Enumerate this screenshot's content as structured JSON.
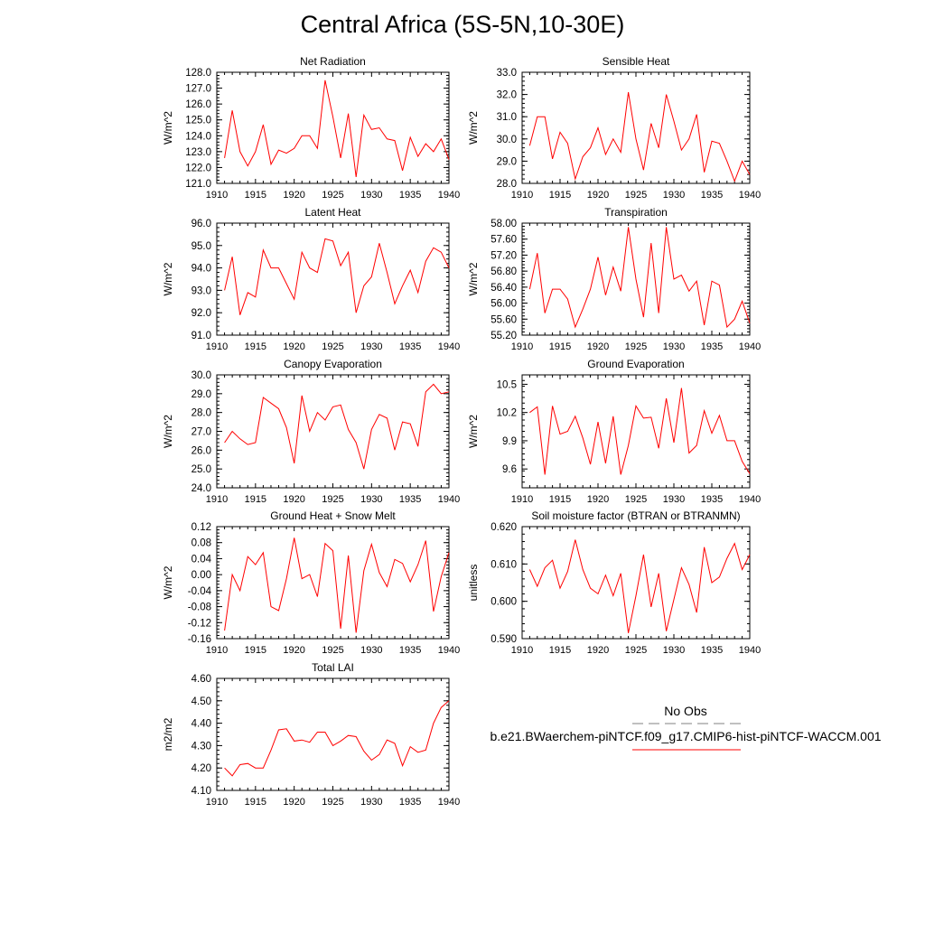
{
  "title": "Central Africa (5S-5N,10-30E)",
  "colors": {
    "series": "#ff0000",
    "axis": "#000000",
    "obs": "#808080"
  },
  "legend": {
    "obs_label": "No Obs",
    "model_label": "b.e21.BWaerchem-piNTCF.f09_g17.CMIP6-hist-piNTCF-WACCM.001"
  },
  "chart_data": [
    {
      "type": "line",
      "title": "Net Radiation",
      "ylabel": "W/m^2",
      "xlim": [
        1910,
        1940
      ],
      "ylim": [
        121.0,
        128.0
      ],
      "xticks": [
        "1910",
        "1915",
        "1920",
        "1925",
        "1930",
        "1935",
        "1940"
      ],
      "yticks": [
        "121.0",
        "122.0",
        "123.0",
        "124.0",
        "125.0",
        "126.0",
        "127.0",
        "128.0"
      ],
      "x": [
        1911,
        1912,
        1913,
        1914,
        1915,
        1916,
        1917,
        1918,
        1919,
        1920,
        1921,
        1922,
        1923,
        1924,
        1925,
        1926,
        1927,
        1928,
        1929,
        1930,
        1931,
        1932,
        1933,
        1934,
        1935,
        1936,
        1937,
        1938,
        1939,
        1940
      ],
      "values": [
        122.6,
        125.6,
        123.0,
        122.1,
        123.0,
        124.7,
        122.2,
        123.1,
        122.9,
        123.2,
        124.0,
        124.0,
        123.2,
        127.5,
        125.2,
        122.6,
        125.4,
        121.4,
        125.3,
        124.4,
        124.5,
        123.8,
        123.7,
        121.8,
        123.9,
        122.7,
        123.5,
        123.0,
        123.8,
        122.5
      ]
    },
    {
      "type": "line",
      "title": "Sensible Heat",
      "ylabel": "W/m^2",
      "xlim": [
        1910,
        1940
      ],
      "ylim": [
        28.0,
        33.0
      ],
      "xticks": [
        "1910",
        "1915",
        "1920",
        "1925",
        "1930",
        "1935",
        "1940"
      ],
      "yticks": [
        "28.0",
        "29.0",
        "30.0",
        "31.0",
        "32.0",
        "33.0"
      ],
      "x": [
        1911,
        1912,
        1913,
        1914,
        1915,
        1916,
        1917,
        1918,
        1919,
        1920,
        1921,
        1922,
        1923,
        1924,
        1925,
        1926,
        1927,
        1928,
        1929,
        1930,
        1931,
        1932,
        1933,
        1934,
        1935,
        1936,
        1937,
        1938,
        1939,
        1940
      ],
      "values": [
        29.7,
        31.0,
        31.0,
        29.1,
        30.3,
        29.8,
        28.2,
        29.2,
        29.6,
        30.5,
        29.3,
        30.0,
        29.4,
        32.1,
        30.0,
        28.6,
        30.7,
        29.6,
        32.0,
        30.8,
        29.5,
        30.0,
        31.1,
        28.5,
        29.9,
        29.8,
        29.0,
        28.1,
        29.0,
        28.4
      ]
    },
    {
      "type": "line",
      "title": "Latent Heat",
      "ylabel": "W/m^2",
      "xlim": [
        1910,
        1940
      ],
      "ylim": [
        91.0,
        96.0
      ],
      "xticks": [
        "1910",
        "1915",
        "1920",
        "1925",
        "1930",
        "1935",
        "1940"
      ],
      "yticks": [
        "91.0",
        "92.0",
        "93.0",
        "94.0",
        "95.0",
        "96.0"
      ],
      "x": [
        1911,
        1912,
        1913,
        1914,
        1915,
        1916,
        1917,
        1918,
        1919,
        1920,
        1921,
        1922,
        1923,
        1924,
        1925,
        1926,
        1927,
        1928,
        1929,
        1930,
        1931,
        1932,
        1933,
        1934,
        1935,
        1936,
        1937,
        1938,
        1939,
        1940
      ],
      "values": [
        93.0,
        94.5,
        91.9,
        92.9,
        92.7,
        94.8,
        94.0,
        94.0,
        93.3,
        92.6,
        94.7,
        94.0,
        93.8,
        95.3,
        95.2,
        94.1,
        94.7,
        92.0,
        93.2,
        93.6,
        95.1,
        93.8,
        92.4,
        93.2,
        93.9,
        92.9,
        94.3,
        94.9,
        94.7,
        94.0
      ]
    },
    {
      "type": "line",
      "title": "Transpiration",
      "ylabel": "W/m^2",
      "xlim": [
        1910,
        1940
      ],
      "ylim": [
        55.2,
        58.0
      ],
      "xticks": [
        "1910",
        "1915",
        "1920",
        "1925",
        "1930",
        "1935",
        "1940"
      ],
      "yticks": [
        "55.20",
        "55.60",
        "56.00",
        "56.40",
        "56.80",
        "57.20",
        "57.60",
        "58.00"
      ],
      "x": [
        1911,
        1912,
        1913,
        1914,
        1915,
        1916,
        1917,
        1918,
        1919,
        1920,
        1921,
        1922,
        1923,
        1924,
        1925,
        1926,
        1927,
        1928,
        1929,
        1930,
        1931,
        1932,
        1933,
        1934,
        1935,
        1936,
        1937,
        1938,
        1939,
        1940
      ],
      "values": [
        56.35,
        57.25,
        55.75,
        56.35,
        56.35,
        56.1,
        55.4,
        55.85,
        56.35,
        57.15,
        56.2,
        56.9,
        56.3,
        57.9,
        56.6,
        55.65,
        57.5,
        55.75,
        57.9,
        56.6,
        56.7,
        56.3,
        56.55,
        55.45,
        56.55,
        56.45,
        55.4,
        55.6,
        56.05,
        55.5
      ]
    },
    {
      "type": "line",
      "title": "Canopy Evaporation",
      "ylabel": "W/m^2",
      "xlim": [
        1910,
        1940
      ],
      "ylim": [
        24.0,
        30.0
      ],
      "xticks": [
        "1910",
        "1915",
        "1920",
        "1925",
        "1930",
        "1935",
        "1940"
      ],
      "yticks": [
        "24.0",
        "25.0",
        "26.0",
        "27.0",
        "28.0",
        "29.0",
        "30.0"
      ],
      "x": [
        1911,
        1912,
        1913,
        1914,
        1915,
        1916,
        1917,
        1918,
        1919,
        1920,
        1921,
        1922,
        1923,
        1924,
        1925,
        1926,
        1927,
        1928,
        1929,
        1930,
        1931,
        1932,
        1933,
        1934,
        1935,
        1936,
        1937,
        1938,
        1939,
        1940
      ],
      "values": [
        26.4,
        27.0,
        26.6,
        26.3,
        26.4,
        28.8,
        28.5,
        28.2,
        27.2,
        25.3,
        28.9,
        27.0,
        28.0,
        27.6,
        28.3,
        28.4,
        27.1,
        26.4,
        25.0,
        27.1,
        27.9,
        27.7,
        26.0,
        27.5,
        27.4,
        26.2,
        29.1,
        29.5,
        29.0,
        29.1
      ]
    },
    {
      "type": "line",
      "title": "Ground Evaporation",
      "ylabel": "W/m^2",
      "xlim": [
        1910,
        1940
      ],
      "ylim": [
        9.4,
        10.6
      ],
      "xticks": [
        "1910",
        "1915",
        "1920",
        "1925",
        "1930",
        "1935",
        "1940"
      ],
      "yticks": [
        "9.6",
        "9.9",
        "10.2",
        "10.5"
      ],
      "x": [
        1911,
        1912,
        1913,
        1914,
        1915,
        1916,
        1917,
        1918,
        1919,
        1920,
        1921,
        1922,
        1923,
        1924,
        1925,
        1926,
        1927,
        1928,
        1929,
        1930,
        1931,
        1932,
        1933,
        1934,
        1935,
        1936,
        1937,
        1938,
        1939,
        1940
      ],
      "values": [
        10.2,
        10.26,
        9.54,
        10.27,
        9.97,
        10.0,
        10.16,
        9.93,
        9.65,
        10.1,
        9.66,
        10.16,
        9.54,
        9.85,
        10.27,
        10.14,
        10.15,
        9.82,
        10.35,
        9.88,
        10.46,
        9.77,
        9.85,
        10.22,
        9.98,
        10.17,
        9.9,
        9.9,
        9.68,
        9.55
      ]
    },
    {
      "type": "line",
      "title": "Ground Heat + Snow Melt",
      "ylabel": "W/m^2",
      "xlim": [
        1910,
        1940
      ],
      "ylim": [
        -0.16,
        0.12
      ],
      "xticks": [
        "1910",
        "1915",
        "1920",
        "1925",
        "1930",
        "1935",
        "1940"
      ],
      "yticks": [
        "-0.16",
        "-0.12",
        "-0.08",
        "-0.04",
        "0.00",
        "0.04",
        "0.08",
        "0.12"
      ],
      "x": [
        1911,
        1912,
        1913,
        1914,
        1915,
        1916,
        1917,
        1918,
        1919,
        1920,
        1921,
        1922,
        1923,
        1924,
        1925,
        1926,
        1927,
        1928,
        1929,
        1930,
        1931,
        1932,
        1933,
        1934,
        1935,
        1936,
        1937,
        1938,
        1939,
        1940
      ],
      "values": [
        -0.14,
        0.0,
        -0.04,
        0.045,
        0.025,
        0.055,
        -0.08,
        -0.09,
        -0.01,
        0.092,
        -0.01,
        0.0,
        -0.055,
        0.078,
        0.06,
        -0.135,
        0.048,
        -0.145,
        0.01,
        0.076,
        0.005,
        -0.03,
        0.038,
        0.028,
        -0.018,
        0.025,
        0.085,
        -0.092,
        -0.005,
        0.055
      ]
    },
    {
      "type": "line",
      "title": "Soil moisture factor (BTRAN or BTRANMN)",
      "ylabel": "unitless",
      "xlim": [
        1910,
        1940
      ],
      "ylim": [
        0.59,
        0.62
      ],
      "xticks": [
        "1910",
        "1915",
        "1920",
        "1925",
        "1930",
        "1935",
        "1940"
      ],
      "yticks": [
        "0.590",
        "0.600",
        "0.610",
        "0.620"
      ],
      "x": [
        1911,
        1912,
        1913,
        1914,
        1915,
        1916,
        1917,
        1918,
        1919,
        1920,
        1921,
        1922,
        1923,
        1924,
        1925,
        1926,
        1927,
        1928,
        1929,
        1930,
        1931,
        1932,
        1933,
        1934,
        1935,
        1936,
        1937,
        1938,
        1939,
        1940
      ],
      "values": [
        0.6085,
        0.604,
        0.609,
        0.611,
        0.6035,
        0.608,
        0.6165,
        0.6085,
        0.6035,
        0.602,
        0.607,
        0.6015,
        0.6075,
        0.5915,
        0.6015,
        0.6125,
        0.5985,
        0.6075,
        0.592,
        0.6005,
        0.609,
        0.6045,
        0.597,
        0.6145,
        0.605,
        0.6065,
        0.6115,
        0.6155,
        0.6085,
        0.6125
      ]
    },
    {
      "type": "line",
      "title": "Total LAI",
      "ylabel": "m2/m2",
      "xlim": [
        1910,
        1940
      ],
      "ylim": [
        4.1,
        4.6
      ],
      "xticks": [
        "1910",
        "1915",
        "1920",
        "1925",
        "1930",
        "1935",
        "1940"
      ],
      "yticks": [
        "4.10",
        "4.20",
        "4.30",
        "4.40",
        "4.50",
        "4.60"
      ],
      "x": [
        1911,
        1912,
        1913,
        1914,
        1915,
        1916,
        1917,
        1918,
        1919,
        1920,
        1921,
        1922,
        1923,
        1924,
        1925,
        1926,
        1927,
        1928,
        1929,
        1930,
        1931,
        1932,
        1933,
        1934,
        1935,
        1936,
        1937,
        1938,
        1939,
        1940
      ],
      "values": [
        4.2,
        4.165,
        4.215,
        4.22,
        4.2,
        4.2,
        4.28,
        4.37,
        4.375,
        4.32,
        4.325,
        4.315,
        4.36,
        4.36,
        4.3,
        4.32,
        4.345,
        4.34,
        4.275,
        4.235,
        4.26,
        4.325,
        4.31,
        4.21,
        4.295,
        4.27,
        4.28,
        4.4,
        4.47,
        4.5
      ]
    }
  ]
}
